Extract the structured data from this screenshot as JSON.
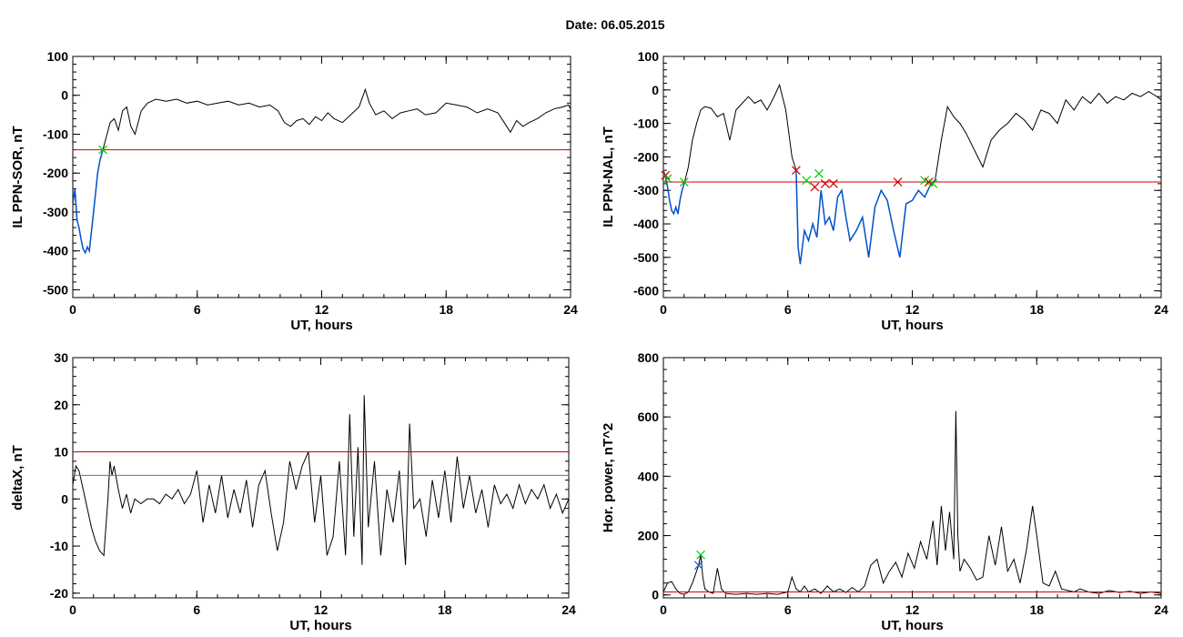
{
  "title": "Date:  06.05.2015",
  "colors": {
    "axis": "#000000",
    "trace": "#000000",
    "highlight": "#0055cc",
    "threshold_red": "#d40000",
    "threshold_teal": "#1f8fa8",
    "marker_green": "#00cc00",
    "marker_red": "#cc0000",
    "marker_blue": "#1f5fd6"
  },
  "chart_data": [
    {
      "type": "line",
      "xlabel": "UT, hours",
      "ylabel": "IL PPN-SOR, nT",
      "xlim": [
        0,
        24
      ],
      "ylim": [
        -520,
        100
      ],
      "xticks": [
        0,
        6,
        12,
        18,
        24
      ],
      "yticks": [
        100,
        0,
        -100,
        -200,
        -300,
        -400,
        -500
      ],
      "thresholds": [
        {
          "y": -140,
          "color": "red"
        }
      ],
      "highlight_ranges": [
        [
          0.0,
          1.45
        ]
      ],
      "markers": [
        {
          "x": 1.45,
          "y": -140,
          "color": "green"
        }
      ],
      "series": [
        {
          "x": [
            0,
            0.1,
            0.2,
            0.3,
            0.4,
            0.5,
            0.6,
            0.7,
            0.8,
            0.9,
            1.0,
            1.1,
            1.2,
            1.3,
            1.45,
            1.6,
            1.8,
            2.0,
            2.2,
            2.4,
            2.6,
            2.8,
            3.0,
            3.3,
            3.6,
            4.0,
            4.5,
            5.0,
            5.5,
            6.0,
            6.5,
            7.0,
            7.5,
            8.0,
            8.5,
            9.0,
            9.5,
            9.9,
            10.2,
            10.5,
            10.8,
            11.1,
            11.4,
            11.7,
            12.0,
            12.3,
            12.6,
            13.0,
            13.4,
            13.8,
            14.1,
            14.3,
            14.6,
            15.0,
            15.4,
            15.8,
            16.2,
            16.6,
            17.0,
            17.5,
            18.0,
            18.5,
            19.0,
            19.5,
            20.0,
            20.5,
            20.8,
            21.1,
            21.4,
            21.7,
            22.0,
            22.4,
            22.8,
            23.2,
            23.6,
            23.9,
            24.0
          ],
          "y": [
            -280,
            -240,
            -320,
            -340,
            -370,
            -395,
            -405,
            -390,
            -400,
            -350,
            -300,
            -250,
            -200,
            -170,
            -140,
            -110,
            -70,
            -60,
            -90,
            -40,
            -30,
            -80,
            -100,
            -40,
            -20,
            -10,
            -15,
            -10,
            -20,
            -15,
            -25,
            -20,
            -15,
            -25,
            -20,
            -30,
            -25,
            -40,
            -70,
            -80,
            -65,
            -60,
            -75,
            -55,
            -65,
            -45,
            -60,
            -70,
            -50,
            -30,
            15,
            -20,
            -50,
            -40,
            -60,
            -45,
            -40,
            -35,
            -50,
            -45,
            -20,
            -25,
            -30,
            -45,
            -35,
            -45,
            -70,
            -95,
            -65,
            -80,
            -70,
            -60,
            -45,
            -35,
            -30,
            -25,
            -35
          ]
        }
      ]
    },
    {
      "type": "line",
      "xlabel": "UT, hours",
      "ylabel": "IL PPN-NAL, nT",
      "xlim": [
        0,
        24
      ],
      "ylim": [
        -620,
        100
      ],
      "xticks": [
        0,
        6,
        12,
        18,
        24
      ],
      "yticks": [
        100,
        0,
        -100,
        -200,
        -300,
        -400,
        -500,
        -600
      ],
      "thresholds": [
        {
          "y": -275,
          "color": "red"
        }
      ],
      "highlight_ranges": [
        [
          0.0,
          1.0
        ],
        [
          6.4,
          13.1
        ]
      ],
      "markers": [
        {
          "x": 0.1,
          "y": -255,
          "color": "red"
        },
        {
          "x": 0.2,
          "y": -265,
          "color": "green"
        },
        {
          "x": 1.0,
          "y": -275,
          "color": "green"
        },
        {
          "x": 6.4,
          "y": -240,
          "color": "red"
        },
        {
          "x": 6.9,
          "y": -270,
          "color": "green"
        },
        {
          "x": 7.3,
          "y": -290,
          "color": "red"
        },
        {
          "x": 7.5,
          "y": -250,
          "color": "green"
        },
        {
          "x": 7.8,
          "y": -280,
          "color": "red"
        },
        {
          "x": 8.2,
          "y": -280,
          "color": "red"
        },
        {
          "x": 11.3,
          "y": -275,
          "color": "red"
        },
        {
          "x": 12.6,
          "y": -270,
          "color": "green"
        },
        {
          "x": 12.8,
          "y": -275,
          "color": "red"
        },
        {
          "x": 13.0,
          "y": -280,
          "color": "green"
        }
      ],
      "series": [
        {
          "x": [
            0,
            0.1,
            0.2,
            0.3,
            0.4,
            0.5,
            0.6,
            0.7,
            0.8,
            0.9,
            1.0,
            1.2,
            1.4,
            1.6,
            1.8,
            2.0,
            2.3,
            2.6,
            2.9,
            3.2,
            3.5,
            3.8,
            4.1,
            4.4,
            4.7,
            5.0,
            5.3,
            5.6,
            5.9,
            6.2,
            6.4,
            6.5,
            6.6,
            6.8,
            7.0,
            7.2,
            7.4,
            7.6,
            7.8,
            8.0,
            8.2,
            8.4,
            8.6,
            8.8,
            9.0,
            9.3,
            9.6,
            9.9,
            10.2,
            10.5,
            10.8,
            11.1,
            11.4,
            11.7,
            12.0,
            12.3,
            12.6,
            12.9,
            13.1,
            13.4,
            13.7,
            14.0,
            14.3,
            14.6,
            15.0,
            15.4,
            15.8,
            16.2,
            16.6,
            17.0,
            17.4,
            17.8,
            18.2,
            18.6,
            19.0,
            19.4,
            19.8,
            20.2,
            20.6,
            21.0,
            21.4,
            21.8,
            22.2,
            22.6,
            23.0,
            23.4,
            23.8,
            24.0
          ],
          "y": [
            -240,
            -260,
            -290,
            -330,
            -360,
            -370,
            -350,
            -370,
            -330,
            -300,
            -280,
            -230,
            -150,
            -100,
            -60,
            -50,
            -55,
            -80,
            -70,
            -150,
            -60,
            -40,
            -20,
            -40,
            -30,
            -60,
            -25,
            15,
            -60,
            -200,
            -240,
            -470,
            -520,
            -420,
            -450,
            -400,
            -440,
            -300,
            -400,
            -380,
            -420,
            -320,
            -300,
            -380,
            -450,
            -420,
            -380,
            -500,
            -350,
            -300,
            -330,
            -420,
            -500,
            -340,
            -330,
            -300,
            -320,
            -280,
            -270,
            -150,
            -50,
            -80,
            -100,
            -130,
            -180,
            -230,
            -150,
            -120,
            -100,
            -70,
            -90,
            -120,
            -60,
            -70,
            -100,
            -30,
            -60,
            -20,
            -40,
            -10,
            -40,
            -20,
            -30,
            -10,
            -20,
            -5,
            -20,
            -30
          ]
        }
      ]
    },
    {
      "type": "line",
      "xlabel": "UT, hours",
      "ylabel": "deltaX, nT",
      "xlim": [
        0,
        24
      ],
      "ylim": [
        -21,
        30
      ],
      "xticks": [
        0,
        6,
        12,
        18,
        24
      ],
      "yticks": [
        30,
        20,
        10,
        0,
        -10,
        -20
      ],
      "thresholds": [
        {
          "y": 10,
          "color": "red"
        },
        {
          "y": 5,
          "color": "teal"
        }
      ],
      "series": [
        {
          "x": [
            0,
            0.15,
            0.3,
            0.5,
            0.7,
            0.9,
            1.1,
            1.3,
            1.5,
            1.7,
            1.8,
            1.9,
            2.0,
            2.2,
            2.4,
            2.6,
            2.8,
            3.0,
            3.3,
            3.6,
            3.9,
            4.2,
            4.5,
            4.8,
            5.1,
            5.4,
            5.7,
            6.0,
            6.3,
            6.6,
            6.9,
            7.2,
            7.5,
            7.8,
            8.1,
            8.4,
            8.7,
            9.0,
            9.3,
            9.6,
            9.9,
            10.2,
            10.5,
            10.8,
            11.1,
            11.4,
            11.7,
            12.0,
            12.3,
            12.6,
            12.9,
            13.2,
            13.4,
            13.6,
            13.8,
            14.0,
            14.1,
            14.3,
            14.6,
            14.9,
            15.2,
            15.5,
            15.8,
            16.1,
            16.3,
            16.5,
            16.8,
            17.1,
            17.4,
            17.7,
            18.0,
            18.3,
            18.6,
            18.9,
            19.2,
            19.5,
            19.8,
            20.1,
            20.4,
            20.7,
            21.0,
            21.3,
            21.6,
            21.9,
            22.2,
            22.5,
            22.8,
            23.1,
            23.4,
            23.7,
            24.0
          ],
          "y": [
            3,
            7,
            6,
            2,
            -2,
            -6,
            -9,
            -11,
            -12,
            0,
            8,
            5,
            7,
            2,
            -2,
            1,
            -3,
            0,
            -1,
            0,
            0,
            -1,
            1,
            0,
            2,
            -1,
            1,
            6,
            -5,
            3,
            -3,
            5,
            -4,
            2,
            -3,
            4,
            -6,
            3,
            6,
            -3,
            -11,
            -5,
            8,
            2,
            7,
            10,
            -5,
            5,
            -12,
            -8,
            8,
            -12,
            18,
            -8,
            11,
            -14,
            22,
            -6,
            8,
            -12,
            2,
            -5,
            6,
            -14,
            16,
            -2,
            0,
            -8,
            4,
            -4,
            6,
            -5,
            9,
            -2,
            5,
            -3,
            2,
            -6,
            3,
            -1,
            1,
            -2,
            3,
            -1,
            2,
            0,
            3,
            -2,
            1,
            -3,
            0
          ]
        }
      ]
    },
    {
      "type": "line",
      "xlabel": "UT, hours",
      "ylabel": "Hor. power, nT^2",
      "xlim": [
        0,
        24
      ],
      "ylim": [
        -10,
        800
      ],
      "xticks": [
        0,
        6,
        12,
        18,
        24
      ],
      "yticks": [
        800,
        600,
        400,
        200,
        0
      ],
      "thresholds": [
        {
          "y": 10,
          "color": "red"
        }
      ],
      "markers": [
        {
          "x": 1.7,
          "y": 100,
          "color": "blue"
        },
        {
          "x": 1.8,
          "y": 135,
          "color": "green"
        }
      ],
      "series": [
        {
          "x": [
            0,
            0.2,
            0.4,
            0.6,
            0.8,
            1.0,
            1.2,
            1.4,
            1.6,
            1.7,
            1.8,
            1.9,
            2.0,
            2.2,
            2.4,
            2.6,
            2.8,
            3.0,
            3.5,
            4.0,
            4.5,
            5.0,
            5.5,
            6.0,
            6.2,
            6.4,
            6.6,
            6.8,
            7.0,
            7.3,
            7.6,
            7.9,
            8.2,
            8.5,
            8.8,
            9.1,
            9.4,
            9.7,
            10.0,
            10.3,
            10.6,
            10.9,
            11.2,
            11.5,
            11.8,
            12.1,
            12.4,
            12.7,
            13.0,
            13.2,
            13.4,
            13.6,
            13.8,
            14.0,
            14.1,
            14.2,
            14.3,
            14.5,
            14.8,
            15.1,
            15.4,
            15.7,
            16.0,
            16.3,
            16.6,
            16.9,
            17.2,
            17.5,
            17.8,
            18.0,
            18.3,
            18.6,
            18.9,
            19.2,
            19.5,
            19.8,
            20.1,
            20.5,
            21.0,
            21.5,
            22.0,
            22.5,
            23.0,
            23.5,
            24.0
          ],
          "y": [
            10,
            40,
            45,
            20,
            5,
            2,
            10,
            40,
            80,
            100,
            135,
            60,
            20,
            10,
            5,
            90,
            20,
            5,
            2,
            5,
            2,
            5,
            2,
            10,
            60,
            20,
            10,
            30,
            10,
            20,
            5,
            30,
            10,
            20,
            8,
            25,
            10,
            30,
            100,
            120,
            40,
            80,
            110,
            60,
            140,
            90,
            180,
            120,
            250,
            100,
            300,
            150,
            280,
            120,
            620,
            200,
            80,
            120,
            90,
            50,
            60,
            200,
            100,
            230,
            80,
            120,
            40,
            150,
            300,
            200,
            40,
            30,
            80,
            20,
            15,
            10,
            20,
            10,
            5,
            15,
            8,
            12,
            5,
            10,
            5
          ]
        }
      ]
    }
  ]
}
